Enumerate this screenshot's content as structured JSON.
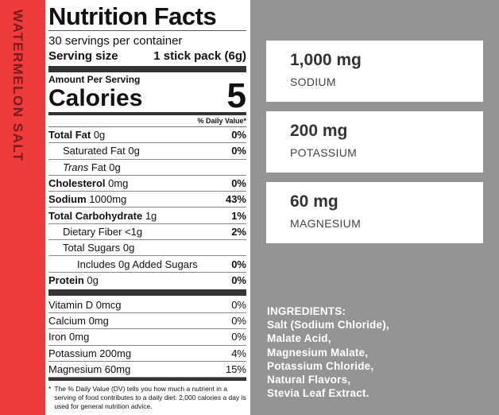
{
  "side_label": "WATERMELON SALT",
  "nutrition": {
    "title": "Nutrition Facts",
    "servings": "30 servings per container",
    "serving_size_label": "Serving size",
    "serving_size_value": "1 stick pack (6g)",
    "amount_per_serving": "Amount Per Serving",
    "calories_label": "Calories",
    "calories_value": "5",
    "dv_header": "% Daily Value*",
    "rows": [
      {
        "bold": "Total Fat",
        "rest": " 0g",
        "dv": "0%"
      },
      {
        "bold": "",
        "rest": "Saturated Fat 0g",
        "dv": "0%"
      },
      {
        "bold": "",
        "italic": "Trans",
        "rest": " Fat 0g",
        "dv": ""
      },
      {
        "bold": "Cholesterol",
        "rest": " 0mg",
        "dv": "0%"
      },
      {
        "bold": "Sodium",
        "rest": " 1000mg",
        "dv": "43%"
      },
      {
        "bold": "Total Carbohydrate",
        "rest": " 1g",
        "dv": "1%"
      },
      {
        "bold": "",
        "rest": "Dietary Fiber <1g",
        "dv": "2%"
      },
      {
        "bold": "",
        "rest": "Total Sugars 0g",
        "dv": ""
      },
      {
        "bold": "",
        "rest": "Includes 0g Added Sugars",
        "dv": "0%"
      },
      {
        "bold": "Protein",
        "rest": " 0g",
        "dv": "0%"
      }
    ],
    "vitamins": [
      {
        "name": "Vitamin D 0mcg",
        "dv": "0%"
      },
      {
        "name": "Calcium 0mg",
        "dv": "0%"
      },
      {
        "name": "Iron 0mg",
        "dv": "0%"
      },
      {
        "name": "Potassium 200mg",
        "dv": "4%"
      },
      {
        "name": "Magnesium 60mg",
        "dv": "15%"
      }
    ],
    "footnote_mark": "*",
    "footnote": "The % Daily Value (DV) tells you how much a nutrient in a serving of food contributes to a daily diet. 2,000 calories a day is used for general nutrition advice."
  },
  "cards": [
    {
      "value": "1,000 mg",
      "label": "SODIUM"
    },
    {
      "value": "200 mg",
      "label": "POTASSIUM"
    },
    {
      "value": "60 mg",
      "label": "MAGNESIUM"
    }
  ],
  "ingredients": {
    "heading": "INGREDIENTS:",
    "lines": [
      "Salt (Sodium Chloride),",
      "Malate Acid,",
      "Magnesium Malate,",
      "Potassium Chloride,",
      "Natural Flavors,",
      "Stevia Leaf Extract."
    ]
  },
  "colors": {
    "accent_red": "#ef3b3e",
    "panel_gray": "#939496"
  }
}
